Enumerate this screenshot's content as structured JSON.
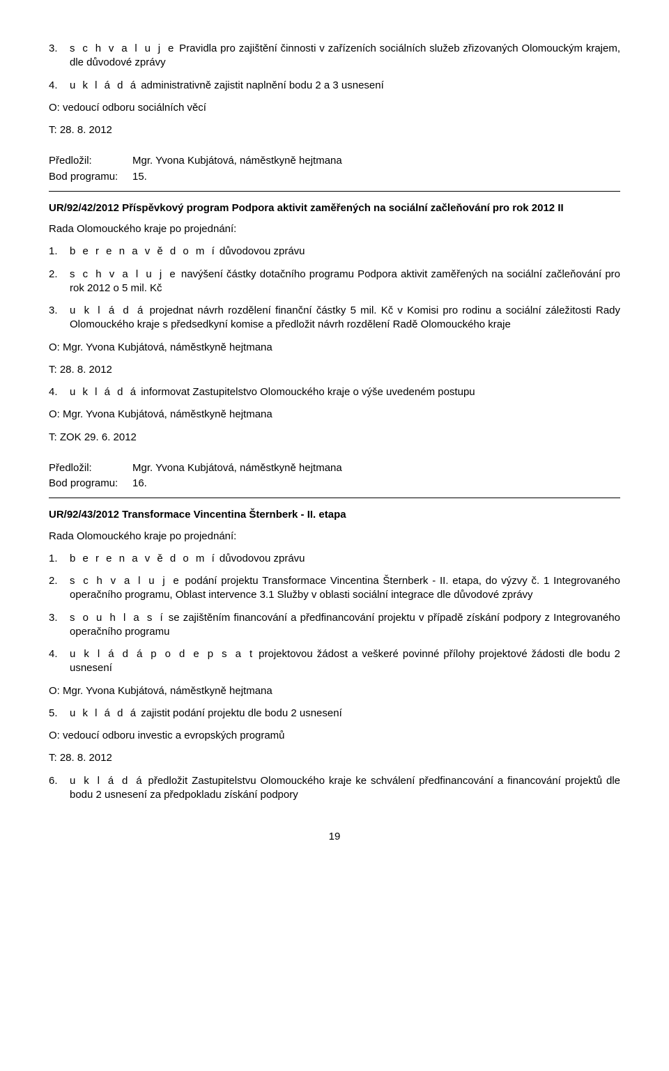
{
  "sec1": {
    "item3_num": "3.",
    "item3_text_lead": "s c h v a l u j e",
    "item3_text_rest": " Pravidla pro zajištění činnosti v zařízeních sociálních služeb zřizovaných Olomouckým krajem, dle důvodové zprávy",
    "item4_num": "4.",
    "item4_text_lead": "u k l á d á",
    "item4_text_rest": "  administrativně zajistit naplnění bodu 2 a 3 usnesení",
    "line_o": "O: vedoucí odboru sociálních věcí",
    "line_t": "T: 28. 8. 2012"
  },
  "meta1": {
    "predlozil_label": "Předložil:",
    "predlozil_value": "Mgr. Yvona Kubjátová, náměstkyně hejtmana",
    "bod_label": "Bod programu:",
    "bod_value": "15."
  },
  "sec2": {
    "heading": "UR/92/42/2012 Příspěvkový program Podpora aktivit zaměřených na sociální začleňování pro rok 2012 II",
    "intro": "Rada Olomouckého kraje po projednání:",
    "i1_num": "1.",
    "i1_lead": "b e r e  n a  v ě d o m í",
    "i1_rest": "  důvodovou zprávu",
    "i2_num": "2.",
    "i2_lead": "s c h v a l u j e",
    "i2_rest": "  navýšení částky dotačního programu Podpora aktivit zaměřených na sociální začleňování pro rok 2012 o 5 mil. Kč",
    "i3_num": "3.",
    "i3_lead": "u k l á d á",
    "i3_rest": "  projednat návrh rozdělení finanční částky 5 mil. Kč v Komisi pro rodinu a sociální záležitosti Rady Olomouckého kraje s předsedkyní komise a předložit návrh rozdělení Radě Olomouckého kraje",
    "o1": "O: Mgr. Yvona Kubjátová, náměstkyně hejtmana",
    "t1": "T: 28. 8. 2012",
    "i4_num": "4.",
    "i4_lead": "u k l á d á",
    "i4_rest": "  informovat Zastupitelstvo Olomouckého kraje o výše uvedeném postupu",
    "o2": "O: Mgr. Yvona Kubjátová, náměstkyně hejtmana",
    "t2": "T: ZOK 29. 6. 2012"
  },
  "meta2": {
    "predlozil_label": "Předložil:",
    "predlozil_value": "Mgr. Yvona Kubjátová, náměstkyně hejtmana",
    "bod_label": "Bod programu:",
    "bod_value": "16."
  },
  "sec3": {
    "heading": "UR/92/43/2012 Transformace Vincentina Šternberk - II. etapa",
    "intro": "Rada Olomouckého kraje po projednání:",
    "i1_num": "1.",
    "i1_lead": "b e r e  n a  v ě d o m í",
    "i1_rest": " důvodovou zprávu",
    "i2_num": "2.",
    "i2_lead": "s c h v a l u j e",
    "i2_rest": " podání projektu Transformace Vincentina Šternberk - II. etapa, do výzvy č. 1 Integrovaného operačního programu, Oblast intervence 3.1 Služby v oblasti sociální integrace dle důvodové zprávy",
    "i3_num": "3.",
    "i3_lead": "s o u h l a s í",
    "i3_rest": " se zajištěním financování a předfinancování projektu v případě získání podpory z Integrovaného operačního programu",
    "i4_num": "4.",
    "i4_lead": "u k l á d á  p o d e p s a t",
    "i4_rest": " projektovou žádost a veškeré povinné přílohy projektové žádosti dle bodu 2 usnesení",
    "o1": "O: Mgr. Yvona Kubjátová, náměstkyně hejtmana",
    "i5_num": "5.",
    "i5_lead": "u k l á d á",
    "i5_rest": "  zajistit podání projektu dle bodu 2 usnesení",
    "o2": "O: vedoucí odboru investic a evropských programů",
    "t2": "T: 28. 8. 2012",
    "i6_num": "6.",
    "i6_lead": "u k l á d á",
    "i6_rest": " předložit Zastupitelstvu Olomouckého kraje ke schválení předfinancování a financování projektů dle bodu 2 usnesení za předpokladu získání podpory"
  },
  "page_number": "19"
}
